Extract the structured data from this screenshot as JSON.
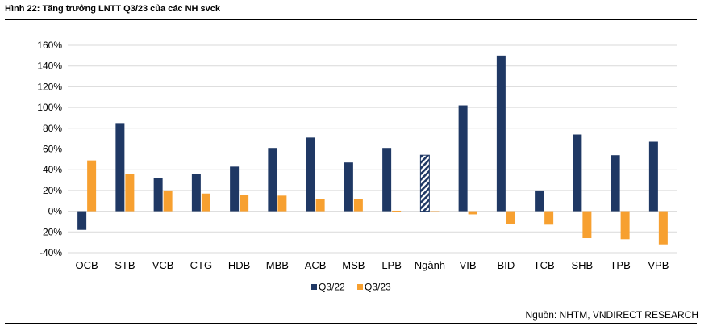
{
  "figure": {
    "title": "Hình 22: Tăng trưởng LNTT Q3/23 của các NH svck",
    "source": "Nguồn: NHTM, VNDIRECT RESEARCH"
  },
  "chart_data": {
    "type": "bar",
    "categories": [
      "OCB",
      "STB",
      "VCB",
      "CTG",
      "HDB",
      "MBB",
      "ACB",
      "MSB",
      "LPB",
      "Ngành",
      "VIB",
      "BID",
      "TCB",
      "SHB",
      "TPB",
      "VPB"
    ],
    "series": [
      {
        "name": "Q3/22",
        "color": "#1f3864",
        "values": [
          -18,
          85,
          32,
          36,
          43,
          61,
          71,
          47,
          61,
          54,
          102,
          150,
          20,
          74,
          54,
          67
        ]
      },
      {
        "name": "Q3/23",
        "color": "#f7a030",
        "values": [
          49,
          36,
          20,
          17,
          16,
          15,
          12,
          12,
          0.5,
          -1,
          -3,
          -12,
          -13,
          -26,
          -27,
          -32
        ]
      }
    ],
    "highlight_category": "Ngành",
    "ylim": [
      -40,
      160
    ],
    "ytick_step": 20,
    "ytick_format": "percent",
    "grid": true,
    "legend": "bottom-center"
  }
}
